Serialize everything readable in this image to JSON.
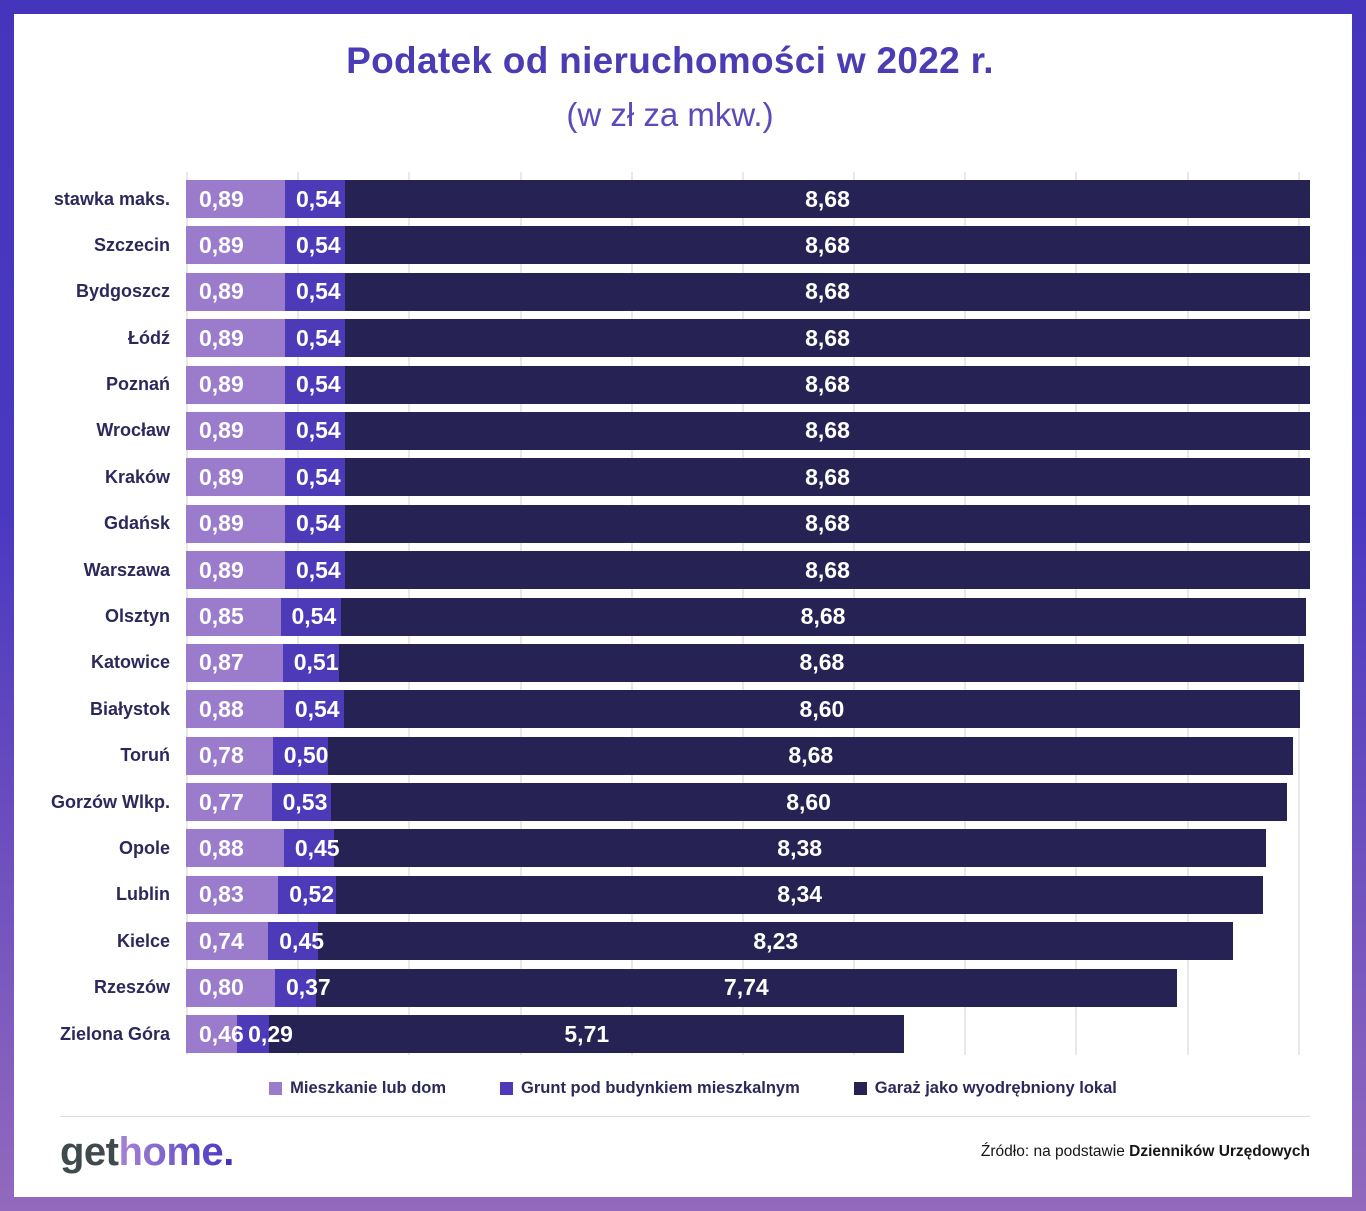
{
  "title": "Podatek od nieruchomości w 2022 r.",
  "subtitle": "(w zł za mkw.)",
  "chart_data": {
    "type": "bar",
    "orientation": "horizontal",
    "stacked": true,
    "title": "Podatek od nieruchomości w 2022 r.",
    "subtitle": "(w zł za mkw.)",
    "unit": "zł za mkw.",
    "xlim": [
      0,
      10.11
    ],
    "gridlines_every": 1,
    "legend_position": "bottom",
    "categories": [
      "stawka maks.",
      "Szczecin",
      "Bydgoszcz",
      "Łódź",
      "Poznań",
      "Wrocław",
      "Kraków",
      "Gdańsk",
      "Warszawa",
      "Olsztyn",
      "Katowice",
      "Białystok",
      "Toruń",
      "Gorzów Wlkp.",
      "Opole",
      "Lublin",
      "Kielce",
      "Rzeszów",
      "Zielona Góra"
    ],
    "series": [
      {
        "name": "Mieszkanie lub dom",
        "color": "#9b7ccc",
        "values": [
          0.89,
          0.89,
          0.89,
          0.89,
          0.89,
          0.89,
          0.89,
          0.89,
          0.89,
          0.85,
          0.87,
          0.88,
          0.78,
          0.77,
          0.88,
          0.83,
          0.74,
          0.8,
          0.46
        ],
        "values_display": [
          "0,89",
          "0,89",
          "0,89",
          "0,89",
          "0,89",
          "0,89",
          "0,89",
          "0,89",
          "0,89",
          "0,85",
          "0,87",
          "0,88",
          "0,78",
          "0,77",
          "0,88",
          "0,83",
          "0,74",
          "0,80",
          "0,46"
        ]
      },
      {
        "name": "Grunt pod budynkiem mieszkalnym",
        "color": "#4c3ab9",
        "values": [
          0.54,
          0.54,
          0.54,
          0.54,
          0.54,
          0.54,
          0.54,
          0.54,
          0.54,
          0.54,
          0.51,
          0.54,
          0.5,
          0.53,
          0.45,
          0.52,
          0.45,
          0.37,
          0.29
        ],
        "values_display": [
          "0,54",
          "0,54",
          "0,54",
          "0,54",
          "0,54",
          "0,54",
          "0,54",
          "0,54",
          "0,54",
          "0,54",
          "0,51",
          "0,54",
          "0,50",
          "0,53",
          "0,45",
          "0,52",
          "0,45",
          "0,37",
          "0,29"
        ]
      },
      {
        "name": "Garaż jako wyodrębniony lokal",
        "color": "#272254",
        "values": [
          8.68,
          8.68,
          8.68,
          8.68,
          8.68,
          8.68,
          8.68,
          8.68,
          8.68,
          8.68,
          8.68,
          8.6,
          8.68,
          8.6,
          8.38,
          8.34,
          8.23,
          7.74,
          5.71
        ],
        "values_display": [
          "8,68",
          "8,68",
          "8,68",
          "8,68",
          "8,68",
          "8,68",
          "8,68",
          "8,68",
          "8,68",
          "8,68",
          "8,68",
          "8,60",
          "8,68",
          "8,60",
          "8,38",
          "8,34",
          "8,23",
          "7,74",
          "5,71"
        ]
      }
    ]
  },
  "footer": {
    "logo_get": "get",
    "logo_home": "home",
    "logo_dot": ".",
    "source_prefix": "Źródło: na podstawie ",
    "source_bold": "Dzienników Urzędowych"
  },
  "colors": {
    "frame_gradient_top": "#4535bd",
    "frame_gradient_bottom": "#9269bd",
    "title": "#4a3cb2",
    "label": "#2b295c",
    "gridline": "#e8e8e8",
    "value_text": "#ffffff"
  }
}
